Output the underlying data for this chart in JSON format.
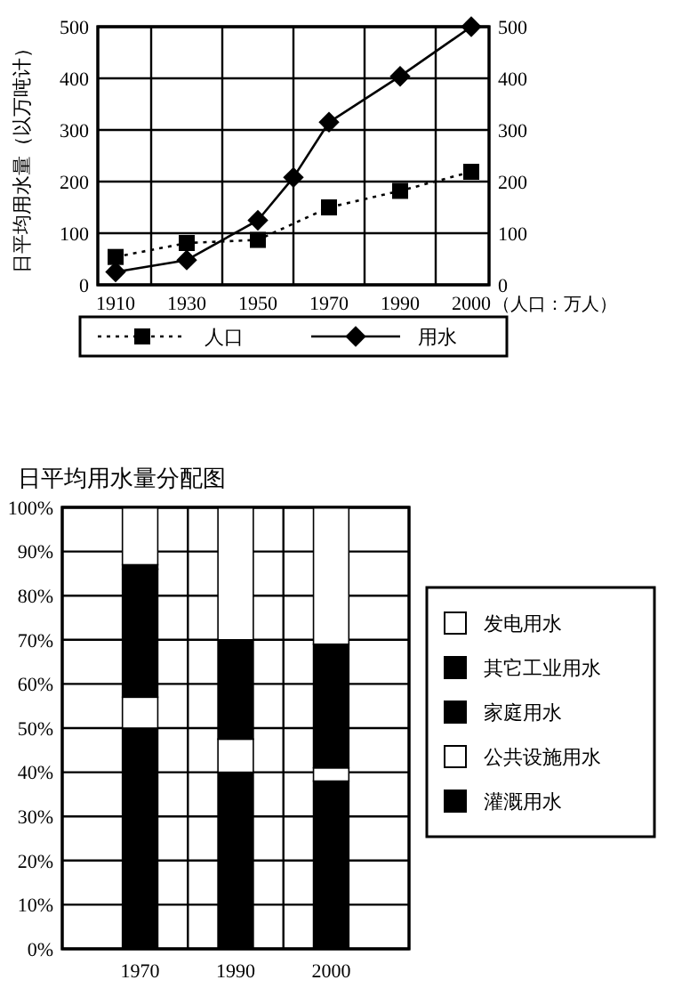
{
  "chart_data": [
    {
      "type": "line",
      "ylabel": "日平均用水量（以万吨计）",
      "y2label": "（人口：万人）",
      "categories": [
        "1910",
        null,
        "1930",
        null,
        "1950",
        null,
        "1970",
        null,
        "1990",
        null,
        "2000"
      ],
      "series": [
        {
          "name": "人口",
          "color": "#000000",
          "axis": "y2",
          "marker": "square",
          "line_style": "dotted",
          "values": [
            54,
            null,
            81,
            null,
            87,
            null,
            150,
            null,
            182,
            null,
            219
          ]
        },
        {
          "name": "用水",
          "color": "#000000",
          "marker": "diamond",
          "line_style": "solid",
          "values": [
            25,
            null,
            48,
            null,
            125,
            208,
            315,
            null,
            404,
            null,
            500
          ]
        }
      ],
      "ylim": [
        0,
        500
      ],
      "yticks": [
        0,
        100,
        200,
        300,
        400,
        500
      ],
      "y2lim": [
        0,
        500
      ],
      "y2ticks": [
        0,
        100,
        200,
        300,
        400,
        500
      ],
      "grid": true,
      "legend": "bottom"
    },
    {
      "type": "bar",
      "title": "日平均用水量分配图",
      "stacked": true,
      "categories": [
        "1970",
        "1990",
        "2000"
      ],
      "series": [
        {
          "name": "灌溉用水",
          "color": "#000000",
          "values": [
            50,
            40,
            38
          ]
        },
        {
          "name": "公共设施用水",
          "color": "#ffffff",
          "values": [
            7,
            7.5,
            3
          ]
        },
        {
          "name": "家庭用水",
          "color": "#000000",
          "values": [
            29,
            22.5,
            28
          ]
        },
        {
          "name": "其它工业用水",
          "color": "#000000",
          "values": [
            1,
            0,
            0
          ]
        },
        {
          "name": "发电用水",
          "color": "#ffffff",
          "values": [
            13,
            30,
            31
          ]
        }
      ],
      "ylim": [
        0,
        100
      ],
      "yticks": [
        {
          "value": 0,
          "label": "0%"
        },
        {
          "value": 10,
          "label": "10%"
        },
        {
          "value": 20,
          "label": "20%"
        },
        {
          "value": 30,
          "label": "30%"
        },
        {
          "value": 40,
          "label": "40%"
        },
        {
          "value": 50,
          "label": "50%"
        },
        {
          "value": 60,
          "label": "60%"
        },
        {
          "value": 70,
          "label": "70%"
        },
        {
          "value": 80,
          "label": "80%"
        },
        {
          "value": 90,
          "label": "90%"
        },
        {
          "value": 100,
          "label": "100%"
        }
      ],
      "grid": true,
      "legend": "right"
    }
  ]
}
